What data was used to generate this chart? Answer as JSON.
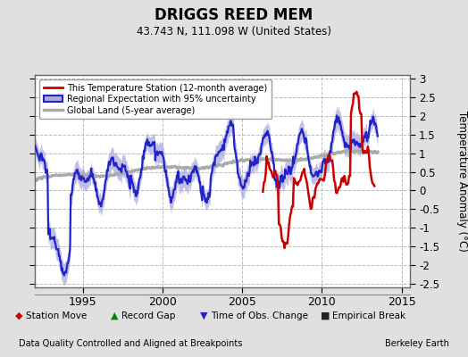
{
  "title": "DRIGGS REED MEM",
  "subtitle": "43.743 N, 111.098 W (United States)",
  "ylabel": "Temperature Anomaly (°C)",
  "xlabel_note": "Data Quality Controlled and Aligned at Breakpoints",
  "credit": "Berkeley Earth",
  "xlim": [
    1992.0,
    2015.5
  ],
  "ylim": [
    -2.6,
    3.1
  ],
  "yticks": [
    -2.5,
    -2,
    -1.5,
    -1,
    -0.5,
    0,
    0.5,
    1,
    1.5,
    2,
    2.5,
    3
  ],
  "xticks": [
    1995,
    2000,
    2005,
    2010,
    2015
  ],
  "bg_color": "#e0e0e0",
  "plot_bg_color": "#ffffff",
  "grid_color": "#bbbbbb",
  "station_color": "#cc0000",
  "regional_color": "#2222cc",
  "regional_fill_color": "#aaaadd",
  "global_color": "#aaaaaa",
  "legend_items": [
    {
      "label": "This Temperature Station (12-month average)",
      "color": "#cc0000",
      "lw": 2
    },
    {
      "label": "Regional Expectation with 95% uncertainty",
      "color": "#2222cc",
      "lw": 2
    },
    {
      "label": "Global Land (5-year average)",
      "color": "#aaaaaa",
      "lw": 2
    }
  ],
  "bottom_legend": [
    {
      "label": "Station Move",
      "marker": "D",
      "color": "#cc0000"
    },
    {
      "label": "Record Gap",
      "marker": "^",
      "color": "#008800"
    },
    {
      "label": "Time of Obs. Change",
      "marker": "v",
      "color": "#2222cc"
    },
    {
      "label": "Empirical Break",
      "marker": "s",
      "color": "#222222"
    }
  ]
}
